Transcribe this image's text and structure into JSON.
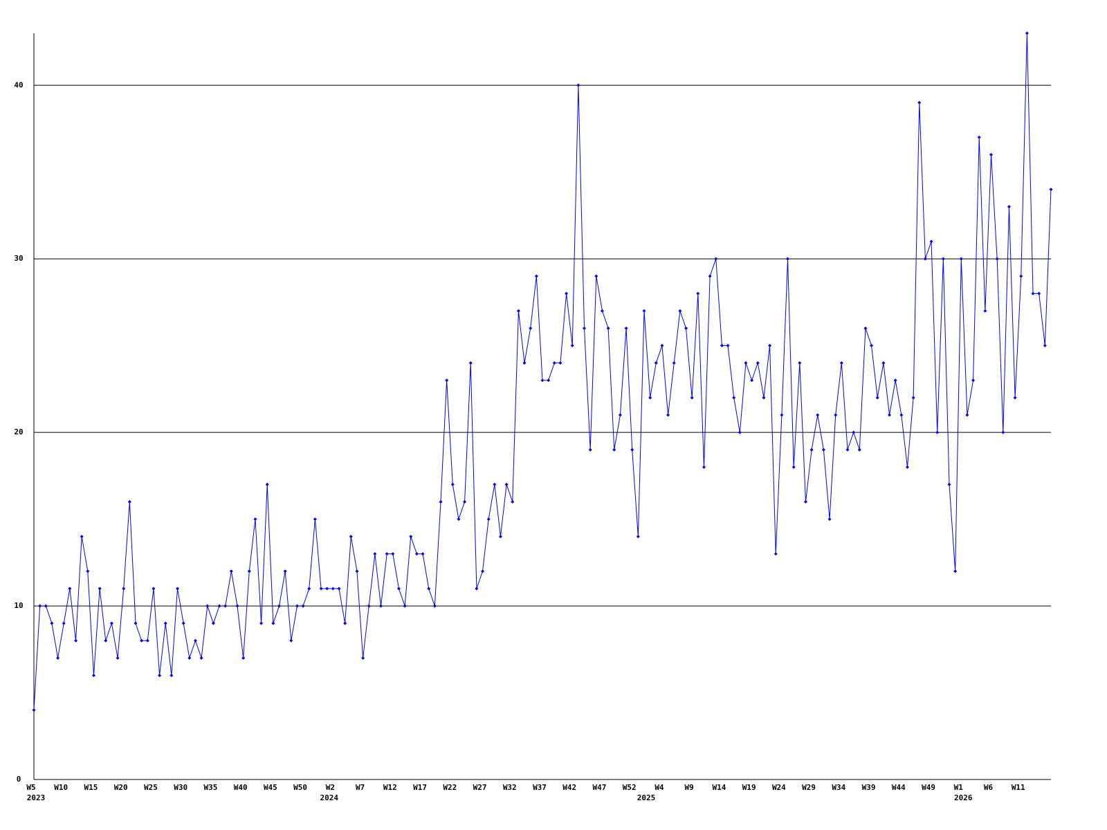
{
  "chart_data": {
    "type": "line",
    "categories": [
      "W5",
      null,
      null,
      null,
      null,
      "W10",
      null,
      null,
      null,
      null,
      "W15",
      null,
      null,
      null,
      null,
      "W20",
      null,
      null,
      null,
      null,
      "W25",
      null,
      null,
      null,
      null,
      "W30",
      null,
      null,
      null,
      null,
      "W35",
      null,
      null,
      null,
      null,
      "W40",
      null,
      null,
      null,
      null,
      "W45",
      null,
      null,
      null,
      null,
      "W50",
      null,
      null,
      null,
      null,
      "W2",
      null,
      null,
      null,
      null,
      "W7",
      null,
      null,
      null,
      null,
      "W12",
      null,
      null,
      null,
      null,
      "W17",
      null,
      null,
      null,
      null,
      "W22",
      null,
      null,
      null,
      null,
      "W27",
      null,
      null,
      null,
      null,
      "W32",
      null,
      null,
      null,
      null,
      "W37",
      null,
      null,
      null,
      null,
      "W42",
      null,
      null,
      null,
      null,
      "W47",
      null,
      null,
      null,
      null,
      "W52",
      null,
      null,
      null,
      null,
      "W4",
      null,
      null,
      null,
      null,
      "W9",
      null,
      null,
      null,
      null,
      "W14",
      null,
      null,
      null,
      null,
      "W19",
      null,
      null,
      null,
      null,
      "W24",
      null,
      null,
      null,
      null,
      "W29",
      null,
      null,
      null,
      null,
      "W34",
      null,
      null,
      null,
      null,
      "W39",
      null,
      null,
      null,
      null,
      "W44",
      null,
      null,
      null,
      null,
      "W49",
      null,
      null,
      null,
      null,
      "W1",
      null,
      null,
      null,
      null,
      "W6",
      null,
      null,
      null,
      null,
      "W11",
      null,
      null,
      null,
      null,
      null
    ],
    "year_labels": [
      "2023",
      null,
      null,
      null,
      null,
      null,
      null,
      null,
      null,
      null,
      null,
      null,
      null,
      null,
      null,
      null,
      null,
      null,
      null,
      null,
      null,
      null,
      null,
      null,
      null,
      null,
      null,
      null,
      null,
      null,
      null,
      null,
      null,
      null,
      null,
      null,
      null,
      null,
      null,
      null,
      null,
      null,
      null,
      null,
      null,
      null,
      null,
      null,
      null,
      "2024",
      null,
      null,
      null,
      null,
      null,
      null,
      null,
      null,
      null,
      null,
      null,
      null,
      null,
      null,
      null,
      null,
      null,
      null,
      null,
      null,
      null,
      null,
      null,
      null,
      null,
      null,
      null,
      null,
      null,
      null,
      null,
      null,
      null,
      null,
      null,
      null,
      null,
      null,
      null,
      null,
      null,
      null,
      null,
      null,
      null,
      null,
      null,
      null,
      null,
      null,
      null,
      null,
      "2025",
      null,
      null,
      null,
      null,
      null,
      null,
      null,
      null,
      null,
      null,
      null,
      null,
      null,
      null,
      null,
      null,
      null,
      null,
      null,
      null,
      null,
      null,
      null,
      null,
      null,
      null,
      null,
      null,
      null,
      null,
      null,
      null,
      null,
      null,
      null,
      null,
      null,
      null,
      null,
      null,
      null,
      null,
      null,
      null,
      null,
      null,
      null,
      null,
      null,
      null,
      null,
      null,
      "2026",
      null,
      null,
      null,
      null,
      null,
      null,
      null,
      null,
      null,
      null,
      null,
      null,
      null,
      null,
      null
    ],
    "series": [
      {
        "color": "#0000ff",
        "values": [
          4,
          10,
          10,
          9,
          7,
          9,
          11,
          8,
          14,
          12,
          6,
          11,
          8,
          9,
          7,
          11,
          16,
          9,
          8,
          8,
          11,
          6,
          9,
          6,
          11,
          9,
          7,
          8,
          7,
          10,
          9,
          10,
          10,
          12,
          10,
          7,
          12,
          15,
          9,
          17,
          9,
          10,
          12,
          8,
          10,
          10,
          11,
          15,
          11,
          11,
          11,
          11,
          9,
          14,
          12,
          7,
          10,
          13,
          10,
          13,
          13,
          11,
          10,
          14,
          13,
          13,
          11,
          10,
          16,
          23,
          17,
          15,
          16,
          24,
          11,
          12,
          15,
          17,
          14,
          17,
          16,
          27,
          24,
          26,
          29,
          23,
          23,
          24,
          24,
          28,
          25,
          40,
          26,
          19,
          29,
          27,
          26,
          19,
          21,
          26,
          19,
          14,
          27,
          22,
          24,
          25,
          21,
          24,
          27,
          26,
          22,
          28,
          18,
          29,
          30,
          25,
          25,
          22,
          20,
          24,
          23,
          24,
          22,
          25,
          13,
          21,
          30,
          18,
          24,
          16,
          19,
          21,
          19,
          15,
          21,
          24,
          19,
          20,
          19,
          26,
          25,
          22,
          24,
          21,
          23,
          21,
          18,
          22,
          39,
          30,
          31,
          20,
          30,
          17,
          12,
          30,
          21,
          23,
          37,
          27,
          36,
          30,
          20,
          33,
          22,
          29,
          43,
          28,
          28,
          25,
          34
        ]
      }
    ],
    "ylim": [
      0,
      43
    ],
    "yticks": [
      0,
      10,
      20,
      30,
      40
    ],
    "grid": true
  }
}
